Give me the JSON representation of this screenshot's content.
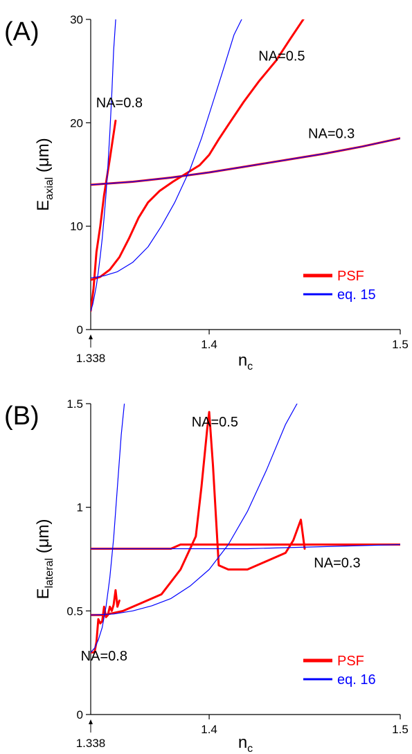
{
  "chart_data": [
    {
      "type": "line",
      "panel_label": "(A)",
      "xlabel": "n",
      "xlabel_sub": "c",
      "ylabel": "E",
      "ylabel_sub": "axial",
      "ylabel_unit": " (μm)",
      "xlim": [
        1.338,
        1.5
      ],
      "ylim": [
        0,
        30
      ],
      "x_ticks": [
        1.338,
        1.4,
        1.5
      ],
      "x_tick_labels": [
        "1.338",
        "1.4",
        "1.5"
      ],
      "y_ticks": [
        0,
        10,
        20,
        30
      ],
      "y_tick_labels": [
        "0",
        "10",
        "20",
        "30"
      ],
      "grid": false,
      "legend_position": "bottom-right",
      "legend": [
        {
          "label": "PSF",
          "color": "#ff0000"
        },
        {
          "label": "eq. 15",
          "color": "#0000ff"
        }
      ],
      "annotations": [
        {
          "text": "NA=0.8",
          "x": 1.353,
          "y": 21.5
        },
        {
          "text": "NA=0.5",
          "x": 1.438,
          "y": 26.0
        },
        {
          "text": "NA=0.3",
          "x": 1.464,
          "y": 18.5
        }
      ],
      "series": [
        {
          "color": "#ff0000",
          "width": 3,
          "x": [
            1.338,
            1.3395,
            1.341,
            1.343,
            1.345,
            1.348,
            1.351
          ],
          "y": [
            1.8,
            4.0,
            7.5,
            10.0,
            13.0,
            16.5,
            20.2
          ]
        },
        {
          "color": "#ff0000",
          "width": 3,
          "x": [
            1.338,
            1.343,
            1.348,
            1.353,
            1.358,
            1.363,
            1.368,
            1.374,
            1.381,
            1.388,
            1.395,
            1.4,
            1.405,
            1.41,
            1.418,
            1.426,
            1.435,
            1.442,
            1.45
          ],
          "y": [
            4.8,
            5.1,
            5.8,
            7.0,
            8.8,
            10.8,
            12.3,
            13.4,
            14.3,
            15.1,
            15.9,
            16.9,
            18.4,
            19.8,
            22.0,
            24.0,
            26.0,
            28.0,
            30.2
          ]
        },
        {
          "color": "#ff0000",
          "width": 3,
          "x": [
            1.338,
            1.36,
            1.38,
            1.4,
            1.42,
            1.44,
            1.46,
            1.48,
            1.5
          ],
          "y": [
            14.0,
            14.3,
            14.7,
            15.2,
            15.8,
            16.4,
            17.0,
            17.7,
            18.5
          ]
        },
        {
          "color": "#0000ff",
          "width": 1.2,
          "x": [
            1.338,
            1.339,
            1.34,
            1.341,
            1.342,
            1.343,
            1.344,
            1.345,
            1.346,
            1.347,
            1.348,
            1.349,
            1.35,
            1.3511
          ],
          "y": [
            1.8,
            2.4,
            3.3,
            4.3,
            5.6,
            7.1,
            8.8,
            10.8,
            13.1,
            15.8,
            19.0,
            22.7,
            27.0,
            30.0
          ]
        },
        {
          "color": "#0000ff",
          "width": 1.2,
          "x": [
            1.338,
            1.345,
            1.352,
            1.36,
            1.368,
            1.375,
            1.382,
            1.39,
            1.396,
            1.402,
            1.408,
            1.413,
            1.417
          ],
          "y": [
            5.0,
            5.2,
            5.6,
            6.5,
            8.0,
            10.0,
            12.3,
            15.5,
            18.5,
            22.0,
            25.5,
            28.5,
            30.0
          ]
        },
        {
          "color": "#0000ff",
          "width": 1.2,
          "x": [
            1.338,
            1.36,
            1.38,
            1.4,
            1.42,
            1.44,
            1.46,
            1.48,
            1.5
          ],
          "y": [
            14.0,
            14.3,
            14.7,
            15.2,
            15.8,
            16.4,
            17.0,
            17.7,
            18.5
          ]
        }
      ]
    },
    {
      "type": "line",
      "panel_label": "(B)",
      "xlabel": "n",
      "xlabel_sub": "c",
      "ylabel": "E",
      "ylabel_sub": "lateral",
      "ylabel_unit": " (μm)",
      "xlim": [
        1.338,
        1.5
      ],
      "ylim": [
        0,
        1.5
      ],
      "x_ticks": [
        1.338,
        1.4,
        1.5
      ],
      "x_tick_labels": [
        "1.338",
        "1.4",
        "1.5"
      ],
      "y_ticks": [
        0,
        0.5,
        1,
        1.5
      ],
      "y_tick_labels": [
        "0",
        "0.5",
        "1",
        "1.5"
      ],
      "grid": false,
      "legend_position": "bottom-right",
      "legend": [
        {
          "label": "PSF",
          "color": "#ff0000"
        },
        {
          "label": "eq. 16",
          "color": "#0000ff"
        }
      ],
      "annotations": [
        {
          "text": "NA=0.8",
          "x": 1.345,
          "y": 0.26
        },
        {
          "text": "NA=0.5",
          "x": 1.403,
          "y": 1.39
        },
        {
          "text": "NA=0.3",
          "x": 1.467,
          "y": 0.71
        }
      ],
      "series": [
        {
          "color": "#ff0000",
          "width": 3,
          "x": [
            1.338,
            1.34,
            1.341,
            1.342,
            1.343,
            1.344,
            1.345,
            1.346,
            1.347,
            1.348,
            1.349,
            1.35,
            1.351,
            1.352,
            1.353
          ],
          "y": [
            0.3,
            0.3,
            0.35,
            0.46,
            0.44,
            0.45,
            0.52,
            0.47,
            0.48,
            0.52,
            0.5,
            0.53,
            0.6,
            0.52,
            0.55
          ]
        },
        {
          "color": "#ff0000",
          "width": 3,
          "x": [
            1.338,
            1.345,
            1.355,
            1.365,
            1.375,
            1.385,
            1.393,
            1.396,
            1.399,
            1.4,
            1.402,
            1.405,
            1.41,
            1.42,
            1.43,
            1.44,
            1.444,
            1.448,
            1.45
          ],
          "y": [
            0.48,
            0.48,
            0.5,
            0.54,
            0.58,
            0.7,
            0.86,
            1.1,
            1.38,
            1.46,
            1.2,
            0.72,
            0.7,
            0.7,
            0.74,
            0.78,
            0.84,
            0.94,
            0.8
          ]
        },
        {
          "color": "#ff0000",
          "width": 3,
          "x": [
            1.338,
            1.38,
            1.385,
            1.4,
            1.42,
            1.44,
            1.46,
            1.48,
            1.5
          ],
          "y": [
            0.8,
            0.8,
            0.82,
            0.82,
            0.82,
            0.82,
            0.82,
            0.82,
            0.82
          ]
        },
        {
          "color": "#0000ff",
          "width": 1.2,
          "x": [
            1.338,
            1.34,
            1.342,
            1.344,
            1.346,
            1.348,
            1.35,
            1.352,
            1.354,
            1.3556
          ],
          "y": [
            0.3,
            0.32,
            0.36,
            0.42,
            0.52,
            0.66,
            0.85,
            1.1,
            1.35,
            1.5
          ]
        },
        {
          "color": "#0000ff",
          "width": 1.2,
          "x": [
            1.338,
            1.35,
            1.36,
            1.37,
            1.38,
            1.39,
            1.4,
            1.41,
            1.42,
            1.43,
            1.44,
            1.446
          ],
          "y": [
            0.48,
            0.485,
            0.5,
            0.525,
            0.56,
            0.62,
            0.7,
            0.82,
            0.98,
            1.18,
            1.4,
            1.5
          ]
        },
        {
          "color": "#0000ff",
          "width": 1.2,
          "x": [
            1.338,
            1.38,
            1.4,
            1.42,
            1.44,
            1.46,
            1.48,
            1.5
          ],
          "y": [
            0.8,
            0.8,
            0.8,
            0.8,
            0.805,
            0.81,
            0.815,
            0.82
          ]
        }
      ]
    }
  ]
}
